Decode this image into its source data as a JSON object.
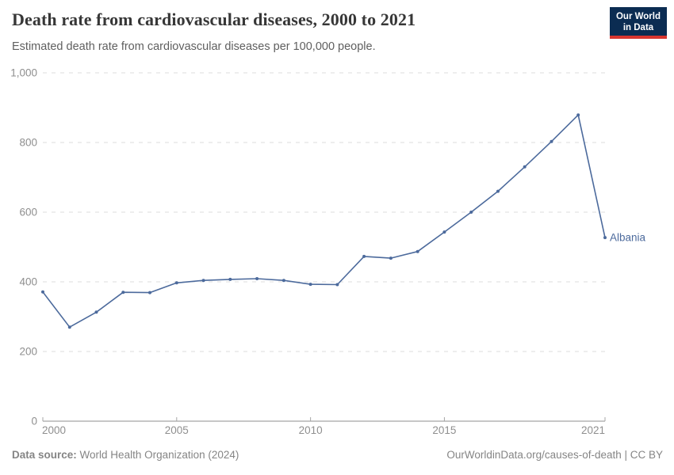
{
  "header": {
    "title": "Death rate from cardiovascular diseases, 2000 to 2021",
    "subtitle": "Estimated death rate from cardiovascular diseases per 100,000 people.",
    "logo": {
      "line1": "Our World",
      "line2": "in Data"
    }
  },
  "chart_data": {
    "type": "line",
    "title": "Death rate from cardiovascular diseases, 2000 to 2021",
    "subtitle": "Estimated death rate from cardiovascular diseases per 100,000 people.",
    "xlabel": "",
    "ylabel": "",
    "xlim": [
      2000,
      2021
    ],
    "ylim": [
      0,
      1000
    ],
    "xticks": [
      2000,
      2005,
      2010,
      2015,
      2021
    ],
    "yticks": [
      0,
      200,
      400,
      600,
      800,
      1000
    ],
    "grid": "horizontal-dashed",
    "legend_position": "line-end-label",
    "series": [
      {
        "name": "Albania",
        "color": "#4C6A9C",
        "x": [
          2000,
          2001,
          2002,
          2003,
          2004,
          2005,
          2006,
          2007,
          2008,
          2009,
          2010,
          2011,
          2012,
          2013,
          2014,
          2015,
          2016,
          2017,
          2018,
          2019,
          2020,
          2021
        ],
        "values": [
          371,
          270,
          313,
          370,
          369,
          397,
          404,
          407,
          409,
          404,
          393,
          392,
          473,
          468,
          487,
          543,
          600,
          660,
          730,
          803,
          879,
          527
        ]
      }
    ]
  },
  "colors": {
    "line": "#4C6A9C",
    "grid": "#dcdcdc",
    "axis": "#8f8f8f",
    "tick": "#a6a6a6",
    "tick_label": "#8f8f8f",
    "logo_bg": "#0b2c52",
    "logo_stripe": "#d8352f"
  },
  "footer": {
    "source_label": "Data source:",
    "source_value": "World Health Organization (2024)",
    "credit": "OurWorldinData.org/causes-of-death | CC BY"
  }
}
